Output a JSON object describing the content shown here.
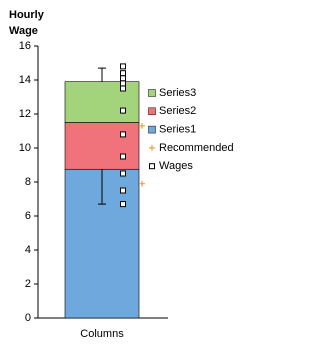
{
  "chart_data": {
    "type": "bar",
    "stacked": true,
    "title": "Hourly Wage",
    "categories": [
      "Columns"
    ],
    "series": [
      {
        "name": "Series1",
        "color": "#6fa8dc",
        "values": [
          8.75
        ],
        "errors": [
          2.05
        ],
        "error_direction": "minus"
      },
      {
        "name": "Series2",
        "color": "#f0727a",
        "values": [
          2.75
        ]
      },
      {
        "name": "Series3",
        "color": "#a3d47b",
        "values": [
          2.4
        ],
        "errors": [
          0.8
        ],
        "error_direction": "plus"
      }
    ],
    "overlays": [
      {
        "name": "Recommended",
        "type": "scatter",
        "marker": "plus",
        "color": "#f0a040",
        "values": [
          11.3,
          7.9
        ]
      },
      {
        "name": "Wages",
        "type": "scatter",
        "marker": "square",
        "color": "#000000",
        "values": [
          14.8,
          14.4,
          14.1,
          13.8,
          13.5,
          12.2,
          10.8,
          9.5,
          8.5,
          7.5,
          6.7
        ]
      }
    ],
    "ylim": [
      0,
      16
    ],
    "yticks": [
      0,
      2,
      4,
      6,
      8,
      10,
      12,
      14,
      16
    ],
    "grid": false
  }
}
